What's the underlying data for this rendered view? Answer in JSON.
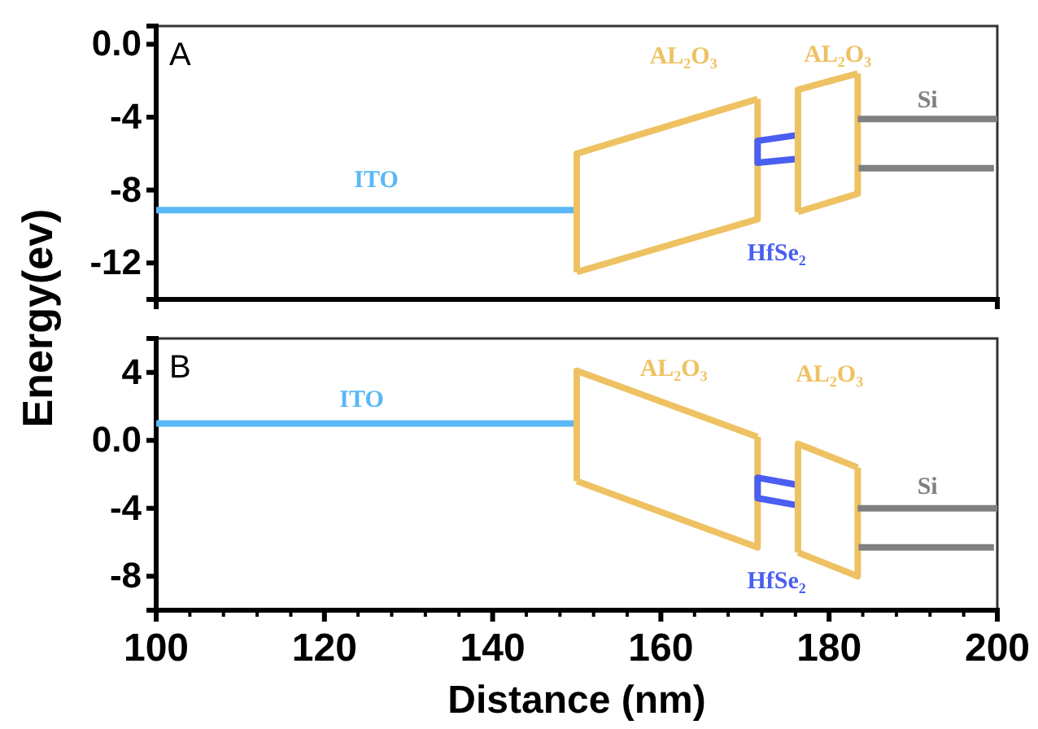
{
  "chart_data": [
    {
      "type": "line",
      "annotations": [
        "A"
      ],
      "xlim": [
        100,
        200
      ],
      "ylim": [
        -14,
        1
      ],
      "yticks": [
        {
          "value": 0,
          "label": "0.0"
        },
        -4,
        -8,
        -12
      ],
      "tick_labels": "y",
      "grid": false,
      "marker": "none",
      "line_style": "solid",
      "series": [
        {
          "name": "ITO",
          "color": "#5ab8f5",
          "x": [
            100,
            150
          ],
          "values": [
            -9.1,
            -9.1
          ]
        },
        {
          "name": "AL₂O₃",
          "color": "#eec262",
          "x": [
            150,
            150,
            171.5
          ],
          "values": [
            -12.5,
            -6.0,
            -3.0
          ]
        },
        {
          "color": "#eec262",
          "x": [
            150,
            171.5,
            171.5
          ],
          "values": [
            -12.5,
            -9.6,
            -3.0
          ]
        },
        {
          "name": "HfSe₂",
          "color": "#4a5ef0",
          "x": [
            176,
            171.5,
            171.5,
            176
          ],
          "values": [
            -5.0,
            -5.3,
            -6.5,
            -6.3
          ]
        },
        {
          "name": "AL₂O₃",
          "color": "#eec262",
          "x": [
            176.3,
            176.3,
            183.4
          ],
          "values": [
            -9.2,
            -2.5,
            -1.6
          ]
        },
        {
          "color": "#eec262",
          "x": [
            176.3,
            183.4,
            183.4
          ],
          "values": [
            -9.2,
            -8.2,
            -1.6
          ]
        },
        {
          "name": "Si",
          "color": "#808080",
          "x": [
            183.4,
            200
          ],
          "values": [
            -4.1,
            -4.1
          ]
        },
        {
          "color": "#808080",
          "x": [
            183.5,
            199.6
          ],
          "values": [
            -6.8,
            -6.8
          ]
        }
      ]
    },
    {
      "type": "line",
      "annotations": [
        "B"
      ],
      "xlabel": "Distance (nm)",
      "ylabel": "Energy(ev)",
      "xlim": [
        100,
        200
      ],
      "xticks": [
        100,
        {
          "value": 104,
          "label": null
        },
        {
          "value": 108,
          "label": null
        },
        {
          "value": 112,
          "label": null
        },
        {
          "value": 116,
          "label": null
        },
        120,
        {
          "value": 124,
          "label": null
        },
        {
          "value": 128,
          "label": null
        },
        {
          "value": 132,
          "label": null
        },
        {
          "value": 136,
          "label": null
        },
        140,
        {
          "value": 144,
          "label": null
        },
        {
          "value": 148,
          "label": null
        },
        {
          "value": 152,
          "label": null
        },
        {
          "value": 156,
          "label": null
        },
        160,
        {
          "value": 164,
          "label": null
        },
        {
          "value": 168,
          "label": null
        },
        {
          "value": 172,
          "label": null
        },
        {
          "value": 176,
          "label": null
        },
        180,
        {
          "value": 184,
          "label": null
        },
        {
          "value": 188,
          "label": null
        },
        {
          "value": 192,
          "label": null
        },
        {
          "value": 196,
          "label": null
        },
        200
      ],
      "ylim": [
        -10,
        6
      ],
      "yticks": [
        4,
        {
          "value": 0,
          "label": "0.0"
        },
        -4,
        -8
      ],
      "grid": false,
      "marker": "none",
      "line_style": "solid",
      "series": [
        {
          "name": "ITO",
          "color": "#5ab8f5",
          "x": [
            100,
            150
          ],
          "values": [
            1.0,
            1.0
          ]
        },
        {
          "name": "AL₂O₃",
          "color": "#eec262",
          "x": [
            150,
            150,
            171.5
          ],
          "values": [
            -2.4,
            4.1,
            0.2
          ]
        },
        {
          "color": "#eec262",
          "x": [
            150,
            171.5,
            171.5
          ],
          "values": [
            -2.4,
            -6.3,
            0.2
          ]
        },
        {
          "name": "HfSe₂",
          "color": "#4a5ef0",
          "x": [
            176,
            171.5,
            171.5,
            176
          ],
          "values": [
            -2.6,
            -2.2,
            -3.4,
            -3.8
          ]
        },
        {
          "name": "AL₂O₃",
          "color": "#eec262",
          "x": [
            176.3,
            176.3,
            183.4
          ],
          "values": [
            -6.6,
            -0.2,
            -1.6
          ]
        },
        {
          "color": "#eec262",
          "x": [
            176.3,
            183.4,
            183.4
          ],
          "values": [
            -6.6,
            -8.0,
            -1.6
          ]
        },
        {
          "name": "Si",
          "color": "#808080",
          "x": [
            183.4,
            200
          ],
          "values": [
            -4.0,
            -4.0
          ]
        },
        {
          "color": "#808080",
          "x": [
            183.5,
            199.6
          ],
          "values": [
            -6.3,
            -6.3
          ]
        }
      ]
    }
  ]
}
